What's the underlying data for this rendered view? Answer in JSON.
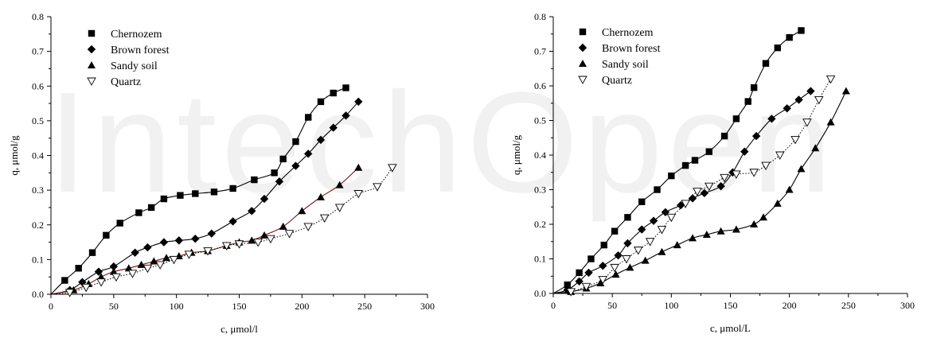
{
  "watermark": "IntechOpen",
  "chart_data": [
    {
      "type": "scatter",
      "xlabel": "c, μmol/l",
      "ylabel": "q, μmol/g",
      "xlim": [
        0,
        300
      ],
      "ylim": [
        0,
        0.8
      ],
      "xticks": [
        0,
        50,
        100,
        150,
        200,
        250,
        300
      ],
      "yticks": [
        0.0,
        0.1,
        0.2,
        0.3,
        0.4,
        0.5,
        0.6,
        0.7,
        0.8
      ],
      "grid": false,
      "legend_position": "top-left",
      "series": [
        {
          "name": "Chernozem",
          "marker": "square",
          "line": "solid",
          "line_color": "#000000",
          "x": [
            11,
            22,
            33,
            44,
            55,
            70,
            80,
            90,
            103,
            115,
            130,
            145,
            162,
            178,
            185,
            195,
            205,
            215,
            225,
            235
          ],
          "y": [
            0.04,
            0.075,
            0.12,
            0.17,
            0.205,
            0.235,
            0.25,
            0.275,
            0.285,
            0.29,
            0.295,
            0.305,
            0.33,
            0.35,
            0.39,
            0.44,
            0.51,
            0.555,
            0.58,
            0.595
          ]
        },
        {
          "name": "Brown forest",
          "marker": "diamond",
          "line": "solid",
          "line_color": "#000000",
          "x": [
            15,
            25,
            38,
            50,
            67,
            77,
            90,
            102,
            115,
            128,
            145,
            160,
            170,
            182,
            195,
            205,
            215,
            225,
            235,
            245
          ],
          "y": [
            0.012,
            0.035,
            0.065,
            0.08,
            0.12,
            0.135,
            0.15,
            0.155,
            0.16,
            0.175,
            0.21,
            0.24,
            0.275,
            0.325,
            0.37,
            0.405,
            0.445,
            0.48,
            0.515,
            0.555
          ]
        },
        {
          "name": "Sandy soil",
          "marker": "triangle",
          "line": "solid",
          "line_color": "#7a1010",
          "x": [
            18,
            30,
            40,
            50,
            62,
            72,
            82,
            92,
            102,
            112,
            125,
            140,
            150,
            160,
            170,
            185,
            200,
            215,
            230,
            245
          ],
          "y": [
            0.012,
            0.03,
            0.05,
            0.065,
            0.075,
            0.085,
            0.095,
            0.105,
            0.11,
            0.12,
            0.125,
            0.14,
            0.15,
            0.155,
            0.17,
            0.195,
            0.24,
            0.28,
            0.315,
            0.365
          ]
        },
        {
          "name": "Quartz",
          "marker": "triangle-down-open",
          "line": "dotted",
          "line_color": "#000000",
          "x": [
            15,
            28,
            40,
            52,
            65,
            77,
            87,
            98,
            110,
            125,
            140,
            150,
            165,
            175,
            190,
            205,
            218,
            230,
            245,
            260,
            272
          ],
          "y": [
            0.005,
            0.02,
            0.035,
            0.05,
            0.06,
            0.075,
            0.085,
            0.1,
            0.115,
            0.125,
            0.14,
            0.145,
            0.15,
            0.16,
            0.175,
            0.195,
            0.22,
            0.25,
            0.29,
            0.31,
            0.365
          ]
        }
      ]
    },
    {
      "type": "scatter",
      "xlabel": "c, μmol/L",
      "ylabel": "q, μmol/g",
      "xlim": [
        0,
        300
      ],
      "ylim": [
        0,
        0.8
      ],
      "xticks": [
        0,
        50,
        100,
        150,
        200,
        250,
        300
      ],
      "yticks": [
        0.0,
        0.1,
        0.2,
        0.3,
        0.4,
        0.5,
        0.6,
        0.7,
        0.8
      ],
      "grid": false,
      "legend_position": "top-left",
      "series": [
        {
          "name": "Chernozem",
          "marker": "square",
          "line": "solid",
          "line_color": "#000000",
          "x": [
            12,
            22,
            32,
            43,
            52,
            63,
            75,
            88,
            100,
            112,
            120,
            132,
            145,
            155,
            165,
            170,
            180,
            190,
            200,
            210
          ],
          "y": [
            0.025,
            0.06,
            0.1,
            0.14,
            0.18,
            0.22,
            0.265,
            0.3,
            0.34,
            0.37,
            0.385,
            0.41,
            0.455,
            0.505,
            0.555,
            0.595,
            0.665,
            0.71,
            0.74,
            0.76
          ]
        },
        {
          "name": "Brown forest",
          "marker": "diamond",
          "line": "solid",
          "line_color": "#000000",
          "x": [
            12,
            22,
            30,
            42,
            55,
            63,
            75,
            85,
            95,
            108,
            118,
            128,
            142,
            152,
            162,
            172,
            185,
            198,
            208,
            218
          ],
          "y": [
            0.01,
            0.035,
            0.06,
            0.08,
            0.11,
            0.145,
            0.185,
            0.21,
            0.235,
            0.255,
            0.275,
            0.29,
            0.31,
            0.35,
            0.41,
            0.455,
            0.505,
            0.535,
            0.56,
            0.585
          ]
        },
        {
          "name": "Sandy soil",
          "marker": "triangle",
          "line": "solid",
          "line_color": "#000000",
          "x": [
            15,
            28,
            40,
            53,
            65,
            78,
            92,
            105,
            118,
            130,
            142,
            155,
            170,
            178,
            190,
            200,
            210,
            222,
            235,
            248
          ],
          "y": [
            0.005,
            0.015,
            0.03,
            0.055,
            0.075,
            0.095,
            0.12,
            0.14,
            0.16,
            0.17,
            0.18,
            0.185,
            0.2,
            0.22,
            0.26,
            0.3,
            0.36,
            0.42,
            0.495,
            0.585
          ]
        },
        {
          "name": "Quartz",
          "marker": "triangle-down-open",
          "line": "dotted",
          "line_color": "#000000",
          "x": [
            15,
            28,
            42,
            52,
            62,
            72,
            82,
            92,
            100,
            112,
            122,
            132,
            145,
            155,
            170,
            180,
            192,
            205,
            215,
            225,
            235
          ],
          "y": [
            0.005,
            0.02,
            0.04,
            0.075,
            0.1,
            0.125,
            0.15,
            0.185,
            0.22,
            0.26,
            0.295,
            0.31,
            0.335,
            0.345,
            0.35,
            0.37,
            0.4,
            0.445,
            0.495,
            0.56,
            0.62
          ]
        }
      ]
    }
  ]
}
